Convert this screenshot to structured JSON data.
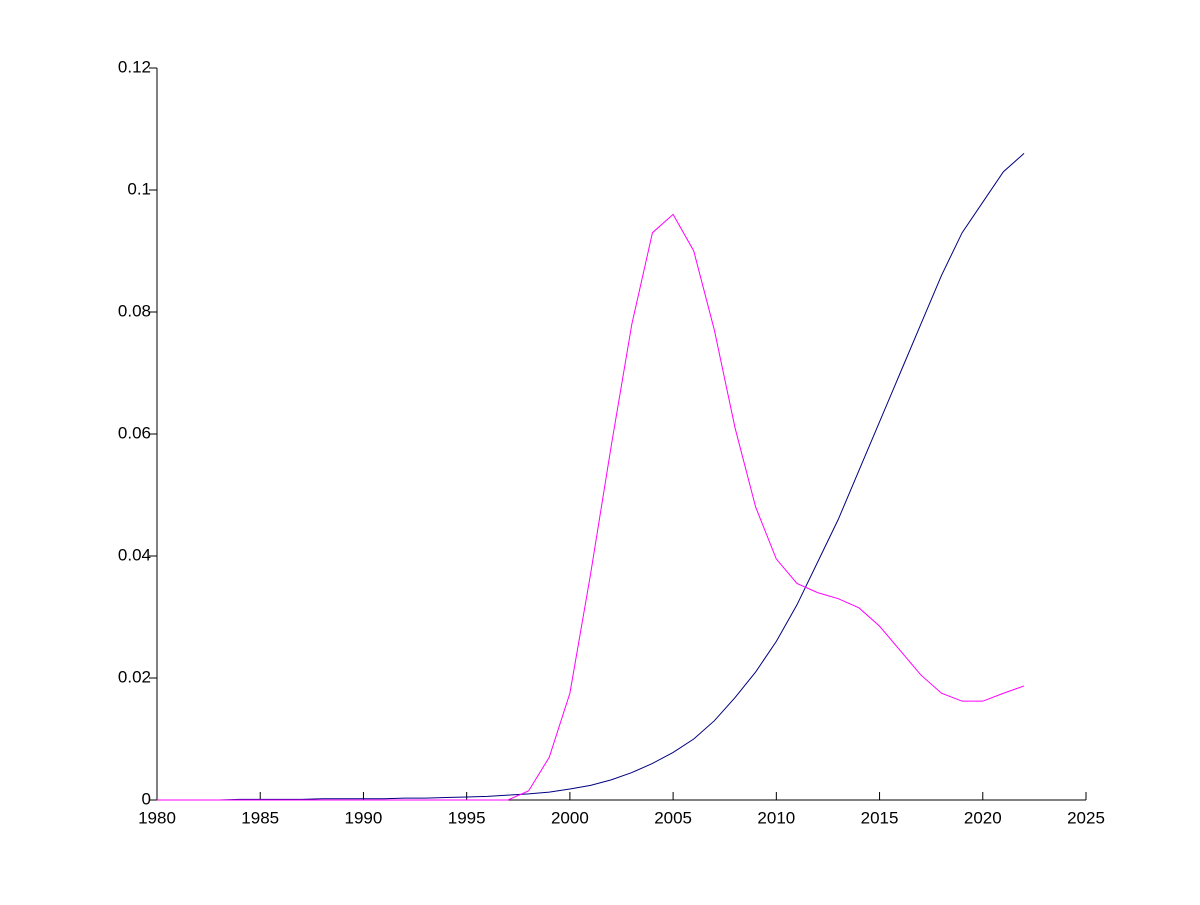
{
  "chart_data": {
    "type": "line",
    "x": [
      1980,
      1981,
      1982,
      1983,
      1984,
      1985,
      1986,
      1987,
      1988,
      1989,
      1990,
      1991,
      1992,
      1993,
      1994,
      1995,
      1996,
      1997,
      1998,
      1999,
      2000,
      2001,
      2002,
      2003,
      2004,
      2005,
      2006,
      2007,
      2008,
      2009,
      2010,
      2011,
      2012,
      2013,
      2014,
      2015,
      2016,
      2017,
      2018,
      2019,
      2020,
      2021,
      2022
    ],
    "series": [
      {
        "color": "#000080",
        "values": [
          0,
          0,
          0,
          0,
          0.0001,
          0.0001,
          0.0001,
          0.0001,
          0.0002,
          0.0002,
          0.0002,
          0.0002,
          0.0003,
          0.0003,
          0.0004,
          0.0005,
          0.0006,
          0.0008,
          0.001,
          0.0013,
          0.0018,
          0.0024,
          0.0033,
          0.0045,
          0.006,
          0.0078,
          0.01,
          0.013,
          0.0168,
          0.021,
          0.026,
          0.032,
          0.039,
          0.046,
          0.054,
          0.062,
          0.07,
          0.078,
          0.086,
          0.093,
          0.098,
          0.103,
          0.106
        ]
      },
      {
        "color": "#ff00ff",
        "values": [
          0,
          0,
          0,
          0,
          0,
          0,
          0,
          0,
          0,
          0,
          0,
          0,
          0,
          0,
          0,
          0,
          0,
          0,
          0.0015,
          0.007,
          0.0175,
          0.037,
          0.058,
          0.078,
          0.093,
          0.096,
          0.09,
          0.077,
          0.061,
          0.048,
          0.0395,
          0.0355,
          0.034,
          0.033,
          0.0315,
          0.0285,
          0.0245,
          0.0205,
          0.0175,
          0.0162,
          0.0162,
          0.0175,
          0.0187
        ]
      }
    ],
    "xlim": [
      1980,
      2025
    ],
    "xticks": [
      1980,
      1985,
      1990,
      1995,
      2000,
      2005,
      2010,
      2015,
      2020,
      2025
    ],
    "ylim": [
      0,
      0.12
    ],
    "yticks": [
      0,
      0.02,
      0.04,
      0.06,
      0.08,
      0.1,
      0.12
    ]
  }
}
